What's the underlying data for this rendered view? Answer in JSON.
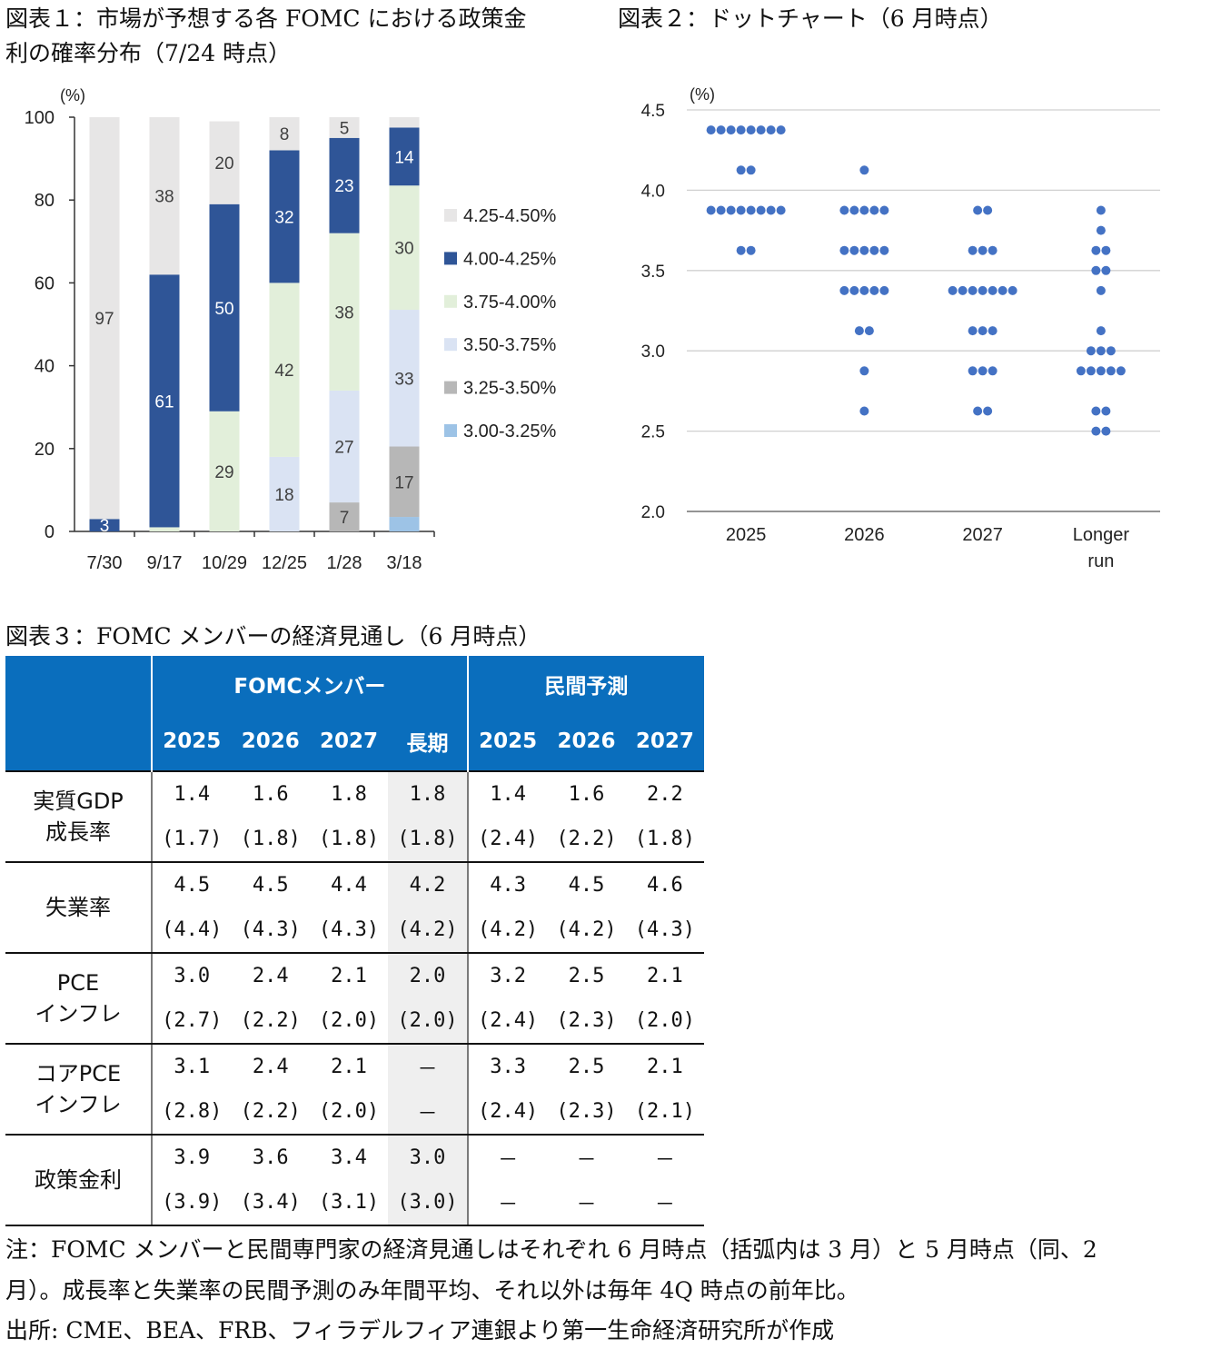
{
  "fig1": {
    "title_line1": "図表１：市場が予想する各 FOMC における政策金",
    "title_line2": "利の確率分布（7/24 時点）"
  },
  "fig2": {
    "title": "図表２：ドットチャート（6 月時点）"
  },
  "fig3": {
    "title": "図表３：FOMC メンバーの経済見通し（6 月時点）"
  },
  "chart_data": [
    {
      "type": "bar",
      "stacked": true,
      "unit_label": "(%)",
      "ylim": [
        0,
        100
      ],
      "yticks": [
        0,
        20,
        40,
        60,
        80,
        100
      ],
      "categories": [
        "7/30",
        "9/17",
        "10/29",
        "12/25",
        "1/28",
        "3/18"
      ],
      "legend_position": "right",
      "series": [
        {
          "name": "3.00-3.25%",
          "color": "#9dc3e6",
          "values": [
            0,
            0,
            0,
            0,
            0,
            3.5
          ],
          "labels": [
            "",
            "",
            "",
            "",
            "",
            ""
          ]
        },
        {
          "name": "3.25-3.50%",
          "color": "#b7b7b7",
          "values": [
            0,
            0,
            0,
            0,
            7,
            17
          ],
          "labels": [
            "",
            "",
            "",
            "",
            "7",
            "17"
          ]
        },
        {
          "name": "3.50-3.75%",
          "color": "#dae3f3",
          "values": [
            0,
            0,
            0,
            18,
            27,
            33
          ],
          "labels": [
            "",
            "",
            "",
            "18",
            "27",
            "33"
          ]
        },
        {
          "name": "3.75-4.00%",
          "color": "#e2efda",
          "values": [
            0,
            1,
            29,
            42,
            38,
            30
          ],
          "labels": [
            "",
            "",
            "29",
            "42",
            "38",
            "30"
          ]
        },
        {
          "name": "4.00-4.25%",
          "color": "#2f5597",
          "values": [
            3,
            61,
            50,
            32,
            23,
            14
          ],
          "labels": [
            "3",
            "61",
            "50",
            "32",
            "23",
            "14"
          ]
        },
        {
          "name": "4.25-4.50%",
          "color": "#e7e6e6",
          "values": [
            97,
            38,
            20,
            8,
            5,
            2.5
          ],
          "labels": [
            "97",
            "38",
            "20",
            "8",
            "5",
            ""
          ]
        }
      ],
      "legend_order": [
        "4.25-4.50%",
        "4.00-4.25%",
        "3.75-4.00%",
        "3.50-3.75%",
        "3.25-3.50%",
        "3.00-3.25%"
      ]
    },
    {
      "type": "scatter",
      "title": "",
      "unit_label": "(%)",
      "ylim": [
        2.0,
        4.5
      ],
      "yticks": [
        "2.0",
        "2.5",
        "3.0",
        "3.5",
        "4.0",
        "4.5"
      ],
      "grid": true,
      "dot_color": "#4472c4",
      "categories": [
        "2025",
        "2026",
        "2027",
        "Longer run"
      ],
      "dots": [
        [
          {
            "y": 4.375,
            "n": 8
          },
          {
            "y": 4.125,
            "n": 2
          },
          {
            "y": 3.875,
            "n": 8
          },
          {
            "y": 3.625,
            "n": 2
          }
        ],
        [
          {
            "y": 4.125,
            "n": 1
          },
          {
            "y": 3.875,
            "n": 5
          },
          {
            "y": 3.625,
            "n": 5
          },
          {
            "y": 3.375,
            "n": 5
          },
          {
            "y": 3.125,
            "n": 2
          },
          {
            "y": 2.875,
            "n": 1
          },
          {
            "y": 2.625,
            "n": 1
          }
        ],
        [
          {
            "y": 3.875,
            "n": 2
          },
          {
            "y": 3.625,
            "n": 3
          },
          {
            "y": 3.375,
            "n": 7
          },
          {
            "y": 3.125,
            "n": 3
          },
          {
            "y": 2.875,
            "n": 3
          },
          {
            "y": 2.625,
            "n": 2
          }
        ],
        [
          {
            "y": 3.875,
            "n": 1
          },
          {
            "y": 3.75,
            "n": 1
          },
          {
            "y": 3.625,
            "n": 2
          },
          {
            "y": 3.5,
            "n": 2
          },
          {
            "y": 3.375,
            "n": 1
          },
          {
            "y": 3.125,
            "n": 1
          },
          {
            "y": 3.0,
            "n": 3
          },
          {
            "y": 2.875,
            "n": 5
          },
          {
            "y": 2.625,
            "n": 2
          },
          {
            "y": 2.5,
            "n": 2
          }
        ]
      ]
    },
    {
      "type": "table",
      "header": {
        "fomc_group": "FOMCメンバー",
        "private_group": "民間予測",
        "fomc_cols": [
          "2025",
          "2026",
          "2027",
          "長期"
        ],
        "private_cols": [
          "2025",
          "2026",
          "2027"
        ]
      },
      "rows": [
        {
          "label": "実質GDP\n成長率",
          "fomc": [
            [
              "1.4",
              "(1.7)"
            ],
            [
              "1.6",
              "(1.8)"
            ],
            [
              "1.8",
              "(1.8)"
            ],
            [
              "1.8",
              "(1.8)"
            ]
          ],
          "private": [
            [
              "1.4",
              "(2.4)"
            ],
            [
              "1.6",
              "(2.2)"
            ],
            [
              "2.2",
              "(1.8)"
            ]
          ]
        },
        {
          "label": "失業率",
          "fomc": [
            [
              "4.5",
              "(4.4)"
            ],
            [
              "4.5",
              "(4.3)"
            ],
            [
              "4.4",
              "(4.3)"
            ],
            [
              "4.2",
              "(4.2)"
            ]
          ],
          "private": [
            [
              "4.3",
              "(4.2)"
            ],
            [
              "4.5",
              "(4.2)"
            ],
            [
              "4.6",
              "(4.3)"
            ]
          ]
        },
        {
          "label": "PCE\nインフレ",
          "fomc": [
            [
              "3.0",
              "(2.7)"
            ],
            [
              "2.4",
              "(2.2)"
            ],
            [
              "2.1",
              "(2.0)"
            ],
            [
              "2.0",
              "(2.0)"
            ]
          ],
          "private": [
            [
              "3.2",
              "(2.4)"
            ],
            [
              "2.5",
              "(2.3)"
            ],
            [
              "2.1",
              "(2.0)"
            ]
          ]
        },
        {
          "label": "コアPCE\nインフレ",
          "fomc": [
            [
              "3.1",
              "(2.8)"
            ],
            [
              "2.4",
              "(2.2)"
            ],
            [
              "2.1",
              "(2.0)"
            ],
            [
              "－",
              "－"
            ]
          ],
          "private": [
            [
              "3.3",
              "(2.4)"
            ],
            [
              "2.5",
              "(2.3)"
            ],
            [
              "2.1",
              "(2.1)"
            ]
          ]
        },
        {
          "label": "政策金利",
          "fomc": [
            [
              "3.9",
              "(3.9)"
            ],
            [
              "3.6",
              "(3.4)"
            ],
            [
              "3.4",
              "(3.1)"
            ],
            [
              "3.0",
              "(3.0)"
            ]
          ],
          "private": [
            [
              "－",
              "－"
            ],
            [
              "－",
              "－"
            ],
            [
              "－",
              "－"
            ]
          ]
        }
      ]
    }
  ],
  "notes": {
    "line1": "注：FOMC メンバーと民間専門家の経済見通しはそれぞれ 6 月時点（括弧内は 3 月）と 5 月時点（同、2",
    "line2": "月）。成長率と失業率の民間予測のみ年間平均、それ以外は毎年 4Q 時点の前年比。",
    "source": "出所: CME、BEA、FRB、フィラデルフィア連銀より第一生命経済研究所が作成"
  }
}
